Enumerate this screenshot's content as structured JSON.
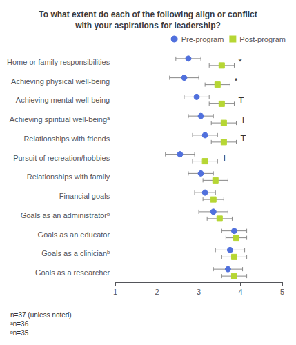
{
  "chart_data": {
    "type": "dot",
    "title": "To what extent do each of the following align or conflict\nwith your aspirations for leadership?",
    "categories": [
      "Home or family responsibilities",
      "Achieving physical well-being",
      "Achieving mental well-being",
      "Achieving spiritual well-beingᵃ",
      "Relationships with friends",
      "Pursuit of recreation/hobbies",
      "Relationships with family",
      "Financial goals",
      "Goals as an administratorᵇ",
      "Goals as an educator",
      "Goals as a clinicianᵇ",
      "Goals as a researcher"
    ],
    "series": [
      {
        "name": "Pre-program",
        "marker": "circle",
        "values": [
          2.75,
          2.65,
          2.95,
          3.05,
          3.15,
          2.55,
          3.05,
          3.15,
          3.35,
          3.85,
          3.75,
          3.7
        ],
        "ci_lo": [
          2.45,
          2.3,
          2.65,
          2.75,
          2.85,
          2.2,
          2.75,
          2.9,
          3.0,
          3.55,
          3.4,
          3.35
        ],
        "ci_hi": [
          3.05,
          3.0,
          3.25,
          3.35,
          3.45,
          2.9,
          3.35,
          3.4,
          3.7,
          4.15,
          4.1,
          4.05
        ]
      },
      {
        "name": "Post-program",
        "marker": "square",
        "values": [
          3.55,
          3.45,
          3.55,
          3.6,
          3.6,
          3.15,
          3.4,
          3.35,
          3.5,
          3.9,
          3.85,
          3.85
        ],
        "ci_lo": [
          3.25,
          3.15,
          3.25,
          3.3,
          3.3,
          2.85,
          3.1,
          3.1,
          3.2,
          3.65,
          3.55,
          3.55
        ],
        "ci_hi": [
          3.85,
          3.75,
          3.85,
          3.9,
          3.9,
          3.45,
          3.7,
          3.6,
          3.8,
          4.15,
          4.15,
          4.15
        ]
      }
    ],
    "annotations": [
      "*",
      "*",
      "T",
      "T",
      "T",
      "T",
      null,
      null,
      null,
      null,
      null,
      null
    ],
    "note": [
      "n=37 (unless noted)",
      "ᵃn=36",
      "ᵇn=35"
    ],
    "xlim": [
      1,
      5
    ],
    "xticks": [
      1,
      2,
      3,
      4,
      5
    ],
    "grid": false,
    "legend": "upper right"
  }
}
